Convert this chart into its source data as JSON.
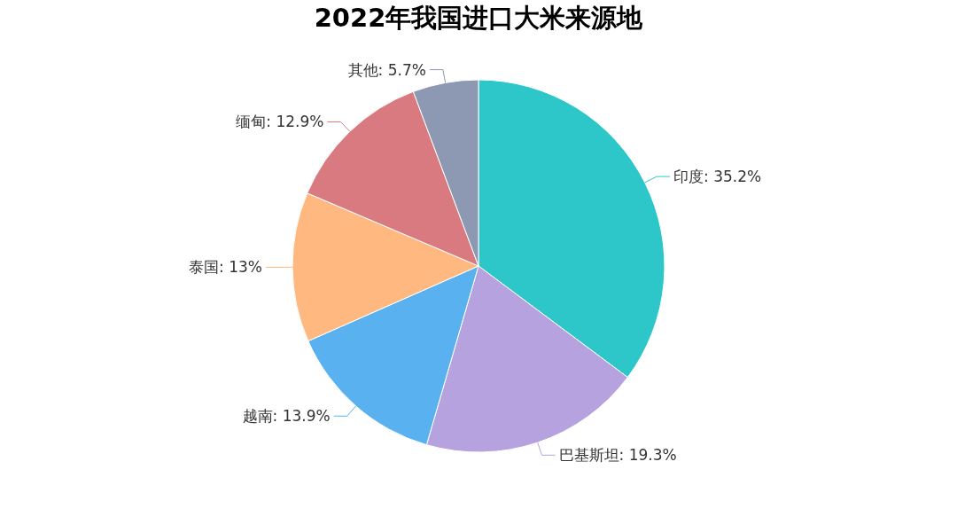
{
  "chart_data": {
    "type": "pie",
    "title": "2022年我国进口大米来源地",
    "categories": [
      "印度",
      "巴基斯坦",
      "越南",
      "泰国",
      "缅甸",
      "其他"
    ],
    "values": [
      35.2,
      19.3,
      13.9,
      13,
      12.9,
      5.7
    ],
    "value_labels": [
      ": 35.2%",
      ": 19.3%",
      ": 13.9%",
      ": 13%",
      ": 12.9%",
      ": 5.7%"
    ],
    "colors": [
      "#2ec7c9",
      "#b6a2de",
      "#5ab1ef",
      "#ffb980",
      "#d87a80",
      "#8d98b3"
    ],
    "legend": false
  }
}
